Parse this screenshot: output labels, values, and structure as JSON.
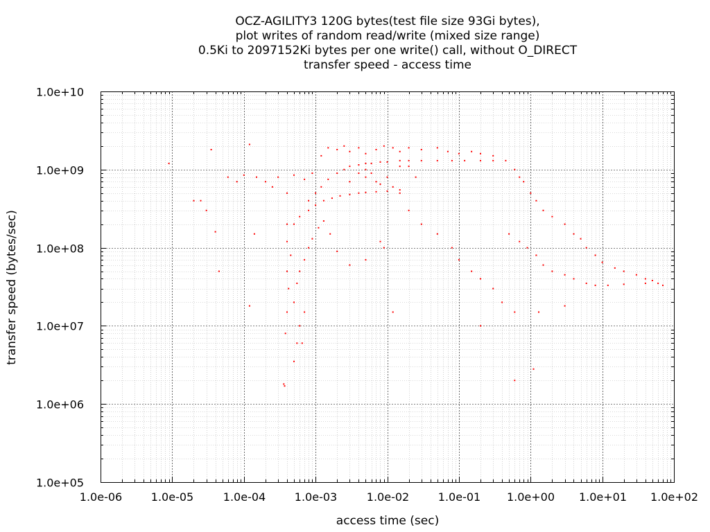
{
  "chart_data": {
    "type": "scatter",
    "title_lines": [
      "OCZ-AGILITY3 120G bytes(test file size 93Gi bytes),",
      "plot writes of random read/write (mixed size range)",
      "0.5Ki to 2097152Ki bytes per one write() call, without O_DIRECT",
      "transfer speed - access time"
    ],
    "xlabel": "access time (sec)",
    "ylabel": "transfer speed (bytes/sec)",
    "x_scale": "log",
    "y_scale": "log",
    "xlim": [
      1e-06,
      100
    ],
    "ylim": [
      100000.0,
      10000000000.0
    ],
    "x_tick_values": [
      1e-06,
      1e-05,
      0.0001,
      0.001,
      0.01,
      0.1,
      1,
      10,
      100
    ],
    "y_tick_values": [
      100000.0,
      1000000.0,
      10000000.0,
      100000000.0,
      1000000000.0,
      10000000000.0
    ],
    "x_ticks": [
      "1.0e-06",
      "1.0e-05",
      "1.0e-04",
      "1.0e-03",
      "1.0e-02",
      "1.0e-01",
      "1.0e+00",
      "1.0e+01",
      "1.0e+02"
    ],
    "y_ticks": [
      "1.0e+05",
      "1.0e+06",
      "1.0e+07",
      "1.0e+08",
      "1.0e+09",
      "1.0e+10"
    ],
    "grid": true,
    "grid_minor": true,
    "legend": "none",
    "point_color": "#ff0000",
    "series": [
      {
        "points": [
          [
            9e-06,
            1200000000.0
          ],
          [
            3.5e-05,
            1800000000.0
          ],
          [
            0.00012,
            2100000000.0
          ],
          [
            2e-05,
            400000000.0
          ],
          [
            2.5e-05,
            400000000.0
          ],
          [
            3e-05,
            300000000.0
          ],
          [
            4e-05,
            160000000.0
          ],
          [
            0.00014,
            150000000.0
          ],
          [
            4.5e-05,
            50000000.0
          ],
          [
            0.00012,
            18000000.0
          ],
          [
            6e-05,
            800000000.0
          ],
          [
            8e-05,
            700000000.0
          ],
          [
            0.0001,
            850000000.0
          ],
          [
            0.00015,
            800000000.0
          ],
          [
            0.0002,
            700000000.0
          ],
          [
            0.0003,
            800000000.0
          ],
          [
            0.0005,
            850000000.0
          ],
          [
            0.0007,
            750000000.0
          ],
          [
            0.00025,
            600000000.0
          ],
          [
            0.0004,
            500000000.0
          ],
          [
            0.0009,
            900000000.0
          ],
          [
            0.0012,
            1500000000.0
          ],
          [
            0.0015,
            1900000000.0
          ],
          [
            0.002,
            1800000000.0
          ],
          [
            0.0025,
            2000000000.0
          ],
          [
            0.003,
            1700000000.0
          ],
          [
            0.004,
            1900000000.0
          ],
          [
            0.005,
            1600000000.0
          ],
          [
            0.007,
            1800000000.0
          ],
          [
            0.009,
            2000000000.0
          ],
          [
            0.012,
            1900000000.0
          ],
          [
            0.015,
            1700000000.0
          ],
          [
            0.02,
            1900000000.0
          ],
          [
            0.03,
            1800000000.0
          ],
          [
            0.05,
            1900000000.0
          ],
          [
            0.07,
            1700000000.0
          ],
          [
            0.1,
            1600000000.0
          ],
          [
            0.15,
            1700000000.0
          ],
          [
            0.2,
            1600000000.0
          ],
          [
            0.3,
            1500000000.0
          ],
          [
            0.0008,
            400000000.0
          ],
          [
            0.001,
            500000000.0
          ],
          [
            0.0012,
            600000000.0
          ],
          [
            0.0015,
            750000000.0
          ],
          [
            0.002,
            900000000.0
          ],
          [
            0.0025,
            1000000000.0
          ],
          [
            0.003,
            1100000000.0
          ],
          [
            0.004,
            1150000000.0
          ],
          [
            0.005,
            1200000000.0
          ],
          [
            0.006,
            1200000000.0
          ],
          [
            0.008,
            1250000000.0
          ],
          [
            0.01,
            1250000000.0
          ],
          [
            0.015,
            1300000000.0
          ],
          [
            0.02,
            1300000000.0
          ],
          [
            0.03,
            1300000000.0
          ],
          [
            0.05,
            1300000000.0
          ],
          [
            0.08,
            1300000000.0
          ],
          [
            0.12,
            1300000000.0
          ],
          [
            0.2,
            1300000000.0
          ],
          [
            0.3,
            1300000000.0
          ],
          [
            0.45,
            1300000000.0
          ],
          [
            0.0005,
            200000000.0
          ],
          [
            0.0006,
            250000000.0
          ],
          [
            0.0008,
            300000000.0
          ],
          [
            0.001,
            350000000.0
          ],
          [
            0.0013,
            400000000.0
          ],
          [
            0.0017,
            430000000.0
          ],
          [
            0.0022,
            460000000.0
          ],
          [
            0.003,
            480000000.0
          ],
          [
            0.004,
            500000000.0
          ],
          [
            0.005,
            510000000.0
          ],
          [
            0.007,
            520000000.0
          ],
          [
            0.01,
            530000000.0
          ],
          [
            0.015,
            550000000.0
          ],
          [
            0.007,
            700000000.0
          ],
          [
            0.01,
            800000000.0
          ],
          [
            0.012,
            600000000.0
          ],
          [
            0.008,
            650000000.0
          ],
          [
            0.006,
            900000000.0
          ],
          [
            0.005,
            800000000.0
          ],
          [
            0.015,
            500000000.0
          ],
          [
            0.0004,
            200000000.0
          ],
          [
            0.0004,
            120000000.0
          ],
          [
            0.00045,
            80000000.0
          ],
          [
            0.0004,
            50000000.0
          ],
          [
            0.00042,
            30000000.0
          ],
          [
            0.0004,
            15000000.0
          ],
          [
            0.00038,
            8000000.0
          ],
          [
            0.00036,
            1800000.0
          ],
          [
            0.00037,
            1700000.0
          ],
          [
            0.0005,
            3500000.0
          ],
          [
            0.00055,
            6000000.0
          ],
          [
            0.0006,
            10000000.0
          ],
          [
            0.00065,
            6000000.0
          ],
          [
            0.0007,
            15000000.0
          ],
          [
            0.0005,
            20000000.0
          ],
          [
            0.00055,
            35000000.0
          ],
          [
            0.0006,
            50000000.0
          ],
          [
            0.0007,
            70000000.0
          ],
          [
            0.0008,
            100000000.0
          ],
          [
            0.0009,
            130000000.0
          ],
          [
            0.0011,
            180000000.0
          ],
          [
            0.0013,
            220000000.0
          ],
          [
            0.0016,
            150000000.0
          ],
          [
            0.002,
            90000000.0
          ],
          [
            0.003,
            60000000.0
          ],
          [
            0.005,
            70000000.0
          ],
          [
            0.009,
            100000000.0
          ],
          [
            0.012,
            15000000.0
          ],
          [
            0.008,
            120000000.0
          ],
          [
            0.02,
            300000000.0
          ],
          [
            0.03,
            200000000.0
          ],
          [
            0.05,
            150000000.0
          ],
          [
            0.08,
            100000000.0
          ],
          [
            0.1,
            70000000.0
          ],
          [
            0.15,
            50000000.0
          ],
          [
            0.2,
            40000000.0
          ],
          [
            0.3,
            30000000.0
          ],
          [
            0.4,
            20000000.0
          ],
          [
            0.6,
            15000000.0
          ],
          [
            0.2,
            10000000.0
          ],
          [
            0.6,
            1000000000.0
          ],
          [
            0.7,
            800000000.0
          ],
          [
            0.8,
            700000000.0
          ],
          [
            1,
            500000000.0
          ],
          [
            1.2,
            400000000.0
          ],
          [
            1.5,
            300000000.0
          ],
          [
            2,
            250000000.0
          ],
          [
            3,
            200000000.0
          ],
          [
            4,
            150000000.0
          ],
          [
            5,
            130000000.0
          ],
          [
            6,
            100000000.0
          ],
          [
            8,
            80000000.0
          ],
          [
            10,
            65000000.0
          ],
          [
            15,
            55000000.0
          ],
          [
            20,
            50000000.0
          ],
          [
            30,
            45000000.0
          ],
          [
            40,
            40000000.0
          ],
          [
            50,
            38000000.0
          ],
          [
            60,
            35000000.0
          ],
          [
            70,
            33000000.0
          ],
          [
            0.5,
            150000000.0
          ],
          [
            0.7,
            120000000.0
          ],
          [
            0.9,
            100000000.0
          ],
          [
            1.2,
            80000000.0
          ],
          [
            1.5,
            60000000.0
          ],
          [
            2,
            50000000.0
          ],
          [
            3,
            45000000.0
          ],
          [
            4,
            40000000.0
          ],
          [
            6,
            35000000.0
          ],
          [
            8,
            33000000.0
          ],
          [
            12,
            33000000.0
          ],
          [
            20,
            34000000.0
          ],
          [
            40,
            35000000.0
          ],
          [
            0.6,
            2000000.0
          ],
          [
            1.1,
            2800000.0
          ],
          [
            1.3,
            15000000.0
          ],
          [
            3,
            18000000.0
          ],
          [
            0.005,
            1000000000.0
          ],
          [
            0.004,
            900000000.0
          ],
          [
            0.003,
            700000000.0
          ],
          [
            0.015,
            1100000000.0
          ],
          [
            0.02,
            1100000000.0
          ],
          [
            0.025,
            800000000.0
          ]
        ]
      }
    ]
  }
}
